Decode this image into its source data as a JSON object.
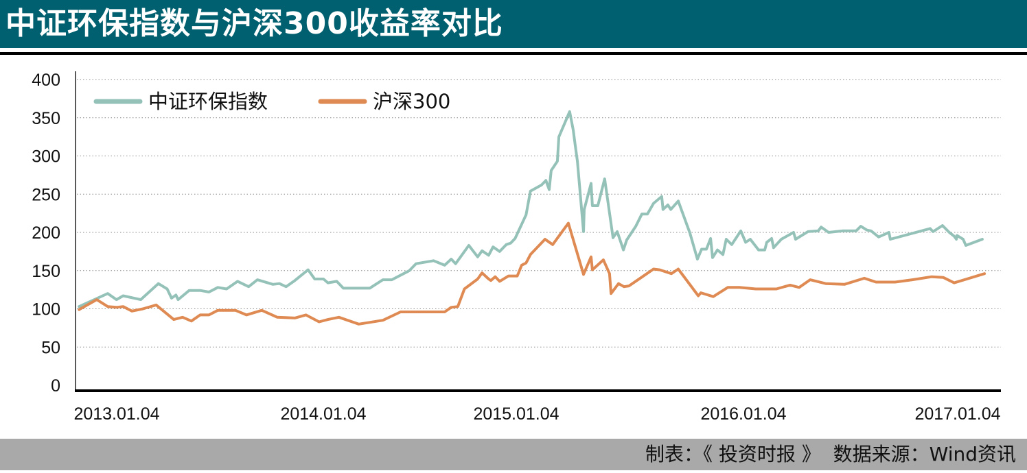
{
  "header": {
    "title": "中证环保指数与沪深300收益率对比"
  },
  "footer": {
    "credit": "制表：《 投资时报 》  数据来源：Wind资讯"
  },
  "colors": {
    "title_bar": "#00606f",
    "footer_bar": "#a9a9a9",
    "series_green": "#95c2b8",
    "series_orange": "#de8a52"
  },
  "chart_data": {
    "type": "line",
    "title": "中证环保指数与沪深300收益率对比",
    "xlabel": "",
    "ylabel": "",
    "ylim": [
      0,
      400
    ],
    "yticks": [
      0,
      50,
      100,
      150,
      200,
      250,
      300,
      350,
      400
    ],
    "xticks": [
      {
        "label": "2013.01.04",
        "x": 2013.0
      },
      {
        "label": "2014.01.04",
        "x": 2014.0
      },
      {
        "label": "2015.01.04",
        "x": 2015.0
      },
      {
        "label": "2016.01.04",
        "x": 2016.0
      },
      {
        "label": "2017.01.04",
        "x": 2017.0
      }
    ],
    "grid": "horizontal dotted",
    "legend": "top-left",
    "series": [
      {
        "name": "中证环保指数",
        "color": "#95c2b8",
        "points": [
          [
            2013.01,
            103
          ],
          [
            2013.14,
            120
          ],
          [
            2013.18,
            112
          ],
          [
            2013.21,
            117
          ],
          [
            2013.29,
            112
          ],
          [
            2013.37,
            133
          ],
          [
            2013.41,
            126
          ],
          [
            2013.43,
            114
          ],
          [
            2013.45,
            118
          ],
          [
            2013.46,
            112
          ],
          [
            2013.51,
            124
          ],
          [
            2013.56,
            124
          ],
          [
            2013.6,
            122
          ],
          [
            2013.64,
            128
          ],
          [
            2013.68,
            126
          ],
          [
            2013.73,
            136
          ],
          [
            2013.78,
            129
          ],
          [
            2013.82,
            138
          ],
          [
            2013.89,
            132
          ],
          [
            2013.92,
            133
          ],
          [
            2013.95,
            129
          ],
          [
            2013.99,
            137
          ],
          [
            2014.05,
            151
          ],
          [
            2014.08,
            139
          ],
          [
            2014.12,
            139
          ],
          [
            2014.14,
            134
          ],
          [
            2014.18,
            136
          ],
          [
            2014.21,
            127
          ],
          [
            2014.33,
            127
          ],
          [
            2014.39,
            138
          ],
          [
            2014.43,
            138
          ],
          [
            2014.51,
            150
          ],
          [
            2014.54,
            159
          ],
          [
            2014.62,
            163
          ],
          [
            2014.67,
            157
          ],
          [
            2014.7,
            165
          ],
          [
            2014.72,
            159
          ],
          [
            2014.78,
            183
          ],
          [
            2014.82,
            168
          ],
          [
            2014.84,
            176
          ],
          [
            2014.87,
            170
          ],
          [
            2014.89,
            181
          ],
          [
            2014.92,
            175
          ],
          [
            2014.95,
            184
          ],
          [
            2014.97,
            186
          ],
          [
            2014.99,
            192
          ],
          [
            2015.04,
            223
          ],
          [
            2015.06,
            254
          ],
          [
            2015.11,
            262
          ],
          [
            2015.13,
            268
          ],
          [
            2015.145,
            256
          ],
          [
            2015.154,
            281
          ],
          [
            2015.182,
            293
          ],
          [
            2015.189,
            325
          ],
          [
            2015.22,
            346
          ],
          [
            2015.238,
            358
          ],
          [
            2015.254,
            334
          ],
          [
            2015.263,
            314
          ],
          [
            2015.273,
            293
          ],
          [
            2015.301,
            201
          ],
          [
            2015.304,
            230
          ],
          [
            2015.335,
            264
          ],
          [
            2015.341,
            235
          ],
          [
            2015.366,
            235
          ],
          [
            2015.397,
            270
          ],
          [
            2015.435,
            193
          ],
          [
            2015.454,
            201
          ],
          [
            2015.482,
            177
          ],
          [
            2015.497,
            190
          ],
          [
            2015.538,
            208
          ],
          [
            2015.566,
            224
          ],
          [
            2015.591,
            224
          ],
          [
            2015.619,
            238
          ],
          [
            2015.656,
            247
          ],
          [
            2015.662,
            230
          ],
          [
            2015.684,
            236
          ],
          [
            2015.697,
            230
          ],
          [
            2015.731,
            241
          ],
          [
            2015.784,
            199
          ],
          [
            2015.818,
            165
          ],
          [
            2015.837,
            178
          ],
          [
            2015.859,
            178
          ],
          [
            2015.878,
            192
          ],
          [
            2015.887,
            167
          ],
          [
            2015.909,
            177
          ],
          [
            2015.934,
            171
          ],
          [
            2015.949,
            191
          ],
          [
            2015.974,
            184
          ],
          [
            2016.015,
            202
          ],
          [
            2016.037,
            187
          ],
          [
            2016.058,
            191
          ],
          [
            2016.096,
            177
          ],
          [
            2016.124,
            177
          ],
          [
            2016.133,
            187
          ],
          [
            2016.155,
            192
          ],
          [
            2016.164,
            180
          ],
          [
            2016.199,
            191
          ],
          [
            2016.255,
            200
          ],
          [
            2016.264,
            191
          ],
          [
            2016.32,
            201
          ],
          [
            2016.367,
            202
          ],
          [
            2016.38,
            207
          ],
          [
            2016.414,
            200
          ],
          [
            2016.479,
            202
          ],
          [
            2016.539,
            202
          ],
          [
            2016.56,
            208
          ],
          [
            2016.588,
            203
          ],
          [
            2016.607,
            202
          ],
          [
            2016.641,
            194
          ],
          [
            2016.688,
            200
          ],
          [
            2016.694,
            191
          ],
          [
            2016.875,
            205
          ],
          [
            2016.888,
            201
          ],
          [
            2016.931,
            209
          ],
          [
            2016.962,
            200
          ],
          [
            2016.984,
            195
          ],
          [
            2016.994,
            191
          ],
          [
            2016.997,
            196
          ],
          [
            2017.025,
            191
          ],
          [
            2017.037,
            183
          ],
          [
            2017.112,
            191
          ]
        ]
      },
      {
        "name": "沪深300",
        "color": "#de8a52",
        "points": [
          [
            2013.01,
            99
          ],
          [
            2013.09,
            112
          ],
          [
            2013.14,
            103
          ],
          [
            2013.18,
            102
          ],
          [
            2013.21,
            103
          ],
          [
            2013.25,
            97
          ],
          [
            2013.3,
            100
          ],
          [
            2013.36,
            105
          ],
          [
            2013.44,
            86
          ],
          [
            2013.48,
            89
          ],
          [
            2013.52,
            84
          ],
          [
            2013.56,
            92
          ],
          [
            2013.6,
            92
          ],
          [
            2013.64,
            98
          ],
          [
            2013.72,
            98
          ],
          [
            2013.77,
            92
          ],
          [
            2013.84,
            98
          ],
          [
            2013.91,
            89
          ],
          [
            2013.99,
            88
          ],
          [
            2014.04,
            92
          ],
          [
            2014.1,
            83
          ],
          [
            2014.14,
            86
          ],
          [
            2014.19,
            89
          ],
          [
            2014.28,
            80
          ],
          [
            2014.39,
            85
          ],
          [
            2014.47,
            96
          ],
          [
            2014.67,
            96
          ],
          [
            2014.7,
            102
          ],
          [
            2014.73,
            103
          ],
          [
            2014.76,
            126
          ],
          [
            2014.82,
            139
          ],
          [
            2014.84,
            147
          ],
          [
            2014.87,
            139
          ],
          [
            2014.88,
            137
          ],
          [
            2014.9,
            142
          ],
          [
            2014.92,
            136
          ],
          [
            2014.96,
            143
          ],
          [
            2015.0,
            143
          ],
          [
            2015.02,
            157
          ],
          [
            2015.04,
            160
          ],
          [
            2015.06,
            171
          ],
          [
            2015.126,
            191
          ],
          [
            2015.161,
            184
          ],
          [
            2015.232,
            212
          ],
          [
            2015.301,
            145
          ],
          [
            2015.335,
            168
          ],
          [
            2015.341,
            151
          ],
          [
            2015.391,
            164
          ],
          [
            2015.419,
            146
          ],
          [
            2015.426,
            120
          ],
          [
            2015.46,
            133
          ],
          [
            2015.485,
            129
          ],
          [
            2015.507,
            130
          ],
          [
            2015.563,
            141
          ],
          [
            2015.619,
            152
          ],
          [
            2015.647,
            151
          ],
          [
            2015.7,
            146
          ],
          [
            2015.731,
            152
          ],
          [
            2015.822,
            117
          ],
          [
            2015.834,
            121
          ],
          [
            2015.89,
            116
          ],
          [
            2015.956,
            128
          ],
          [
            2016.009,
            128
          ],
          [
            2016.083,
            126
          ],
          [
            2016.177,
            126
          ],
          [
            2016.239,
            131
          ],
          [
            2016.28,
            128
          ],
          [
            2016.33,
            138
          ],
          [
            2016.401,
            133
          ],
          [
            2016.486,
            132
          ],
          [
            2016.576,
            140
          ],
          [
            2016.629,
            135
          ],
          [
            2016.716,
            135
          ],
          [
            2016.794,
            138
          ],
          [
            2016.882,
            142
          ],
          [
            2016.935,
            141
          ],
          [
            2016.984,
            134
          ],
          [
            2017.122,
            146
          ]
        ]
      }
    ]
  }
}
